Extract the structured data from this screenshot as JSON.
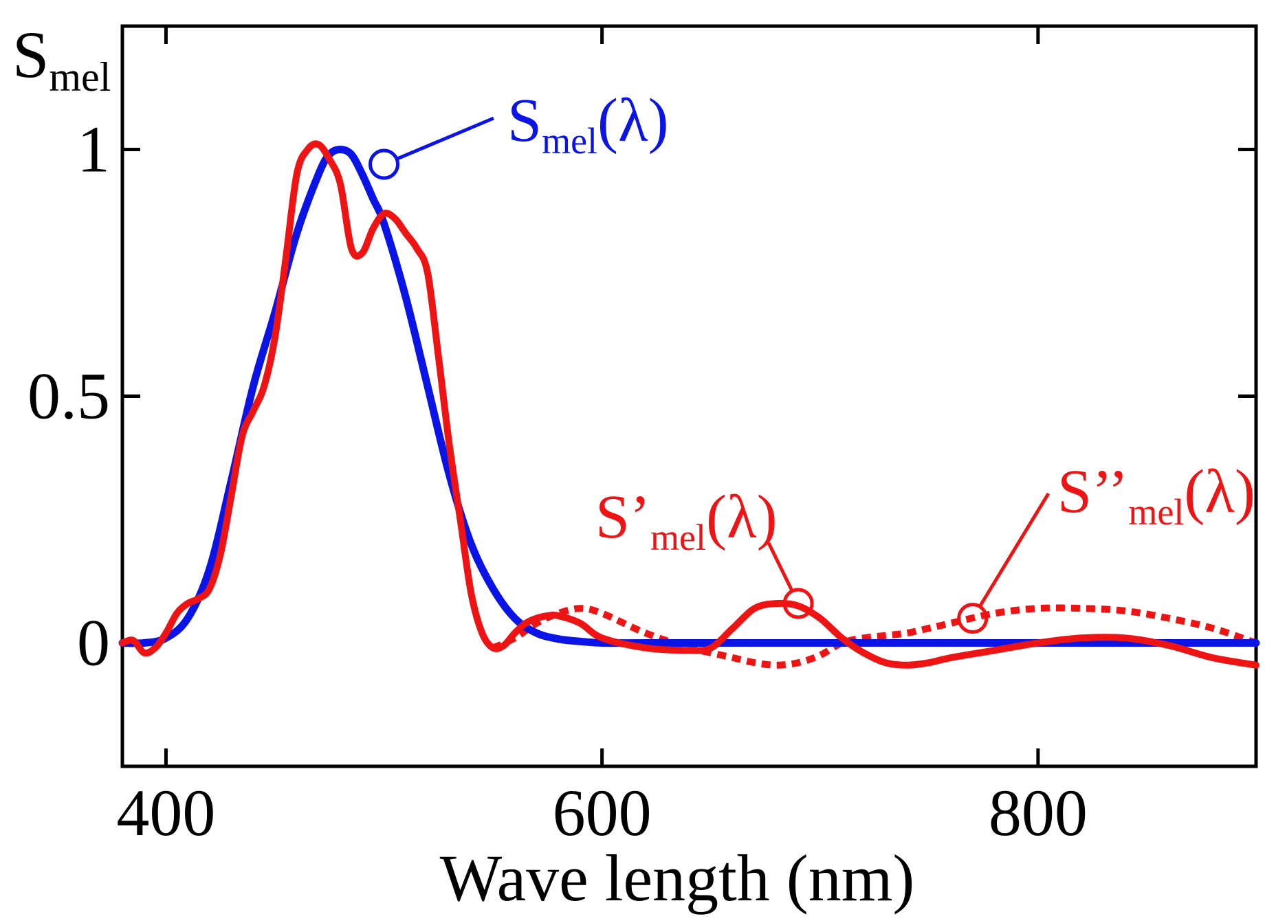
{
  "chart_data": {
    "type": "line",
    "title": "",
    "ylabel": "S",
    "ylabel_sub": "mel",
    "xlabel": "Wave length (nm)",
    "xlim": [
      380,
      900
    ],
    "ylim": [
      -0.25,
      1.25
    ],
    "xticks": [
      400,
      600,
      800
    ],
    "xtick_labels": [
      "400",
      "600",
      "800"
    ],
    "yticks": [
      0,
      0.5,
      1
    ],
    "ytick_labels": [
      "0",
      "0.5",
      "1"
    ],
    "grid": false,
    "colors": {
      "blue": "#0a14e6",
      "red": "#ee1414"
    },
    "series": [
      {
        "name": "Smel(λ)",
        "label_main": "S",
        "label_sub": "mel",
        "label_suffix": "(λ)",
        "color": "#0a14e6",
        "style": "solid",
        "x": [
          380,
          390,
          400,
          410,
          420,
          430,
          440,
          450,
          460,
          470,
          475,
          480,
          485,
          490,
          495,
          500,
          510,
          520,
          530,
          540,
          550,
          560,
          570,
          580,
          590,
          600,
          620,
          650,
          700,
          750,
          800,
          850,
          900
        ],
        "y": [
          0,
          0,
          0.01,
          0.05,
          0.15,
          0.33,
          0.52,
          0.67,
          0.83,
          0.95,
          0.99,
          1.0,
          0.99,
          0.95,
          0.9,
          0.85,
          0.7,
          0.52,
          0.34,
          0.2,
          0.11,
          0.05,
          0.02,
          0.008,
          0.003,
          0.0,
          0.0,
          0.0,
          0.0,
          0.0,
          0.0,
          0.0,
          0.0
        ]
      },
      {
        "name": "S'mel(λ)",
        "label_main": "S’",
        "label_sub": "mel",
        "label_suffix": "(λ)",
        "color": "#ee1414",
        "style": "solid",
        "x": [
          380,
          385,
          390,
          395,
          400,
          405,
          410,
          415,
          420,
          425,
          430,
          435,
          440,
          445,
          450,
          455,
          460,
          465,
          470,
          475,
          480,
          485,
          490,
          495,
          500,
          505,
          510,
          515,
          520,
          525,
          530,
          535,
          540,
          545,
          550,
          555,
          560,
          565,
          570,
          575,
          580,
          590,
          600,
          620,
          640,
          650,
          660,
          670,
          680,
          690,
          700,
          710,
          720,
          730,
          740,
          750,
          760,
          780,
          800,
          820,
          840,
          860,
          880,
          900
        ],
        "y": [
          0,
          0.005,
          -0.02,
          -0.01,
          0.02,
          0.06,
          0.08,
          0.09,
          0.11,
          0.18,
          0.3,
          0.42,
          0.47,
          0.52,
          0.62,
          0.78,
          0.95,
          1.0,
          1.01,
          0.98,
          0.93,
          0.8,
          0.79,
          0.84,
          0.87,
          0.86,
          0.83,
          0.8,
          0.75,
          0.58,
          0.4,
          0.25,
          0.1,
          0.02,
          -0.01,
          -0.005,
          0.02,
          0.04,
          0.05,
          0.055,
          0.055,
          0.04,
          0.01,
          -0.01,
          -0.015,
          -0.01,
          0.03,
          0.07,
          0.08,
          0.075,
          0.05,
          0.01,
          -0.02,
          -0.04,
          -0.045,
          -0.04,
          -0.03,
          -0.015,
          0.0,
          0.01,
          0.01,
          -0.005,
          -0.03,
          -0.045
        ]
      },
      {
        "name": "S''mel(λ)",
        "label_main": "S’’",
        "label_sub": "mel",
        "label_suffix": "(λ)",
        "color": "#ee1414",
        "style": "dotted",
        "x": [
          550,
          560,
          570,
          580,
          590,
          600,
          620,
          640,
          650,
          660,
          670,
          680,
          690,
          700,
          710,
          720,
          730,
          740,
          750,
          760,
          780,
          800,
          820,
          840,
          860,
          880,
          900
        ],
        "y": [
          -0.01,
          0.01,
          0.04,
          0.06,
          0.07,
          0.06,
          0.02,
          -0.01,
          -0.02,
          -0.03,
          -0.04,
          -0.045,
          -0.04,
          -0.025,
          0.0,
          0.01,
          0.015,
          0.02,
          0.03,
          0.04,
          0.06,
          0.07,
          0.07,
          0.065,
          0.05,
          0.03,
          0.0
        ]
      }
    ],
    "annotations": [
      {
        "series": "Smel(λ)",
        "marker_x": 500,
        "marker_y": 0.97,
        "text_anchor": "upper-right"
      },
      {
        "series": "S'mel(λ)",
        "marker_x": 690,
        "marker_y": 0.08,
        "text_anchor": "upper-left"
      },
      {
        "series": "S''mel(λ)",
        "marker_x": 770,
        "marker_y": 0.05,
        "text_anchor": "upper-right"
      }
    ]
  }
}
